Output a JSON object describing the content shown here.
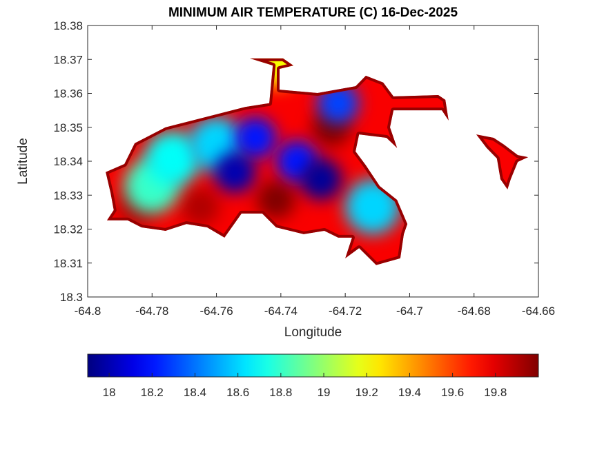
{
  "chart_data": {
    "type": "heatmap",
    "title": "MINIMUM AIR TEMPERATURE (C) 16-Dec-2025",
    "xlabel": "Longitude",
    "ylabel": "Latitude",
    "xlim": [
      -64.8,
      -64.66
    ],
    "ylim": [
      18.3,
      18.38
    ],
    "xticks": [
      "-64.8",
      "-64.78",
      "-64.76",
      "-64.74",
      "-64.72",
      "-64.7",
      "-64.68",
      "-64.66"
    ],
    "yticks": [
      "18.3",
      "18.31",
      "18.32",
      "18.33",
      "18.34",
      "18.35",
      "18.36",
      "18.37",
      "18.38"
    ],
    "grid": false,
    "colormap": "jet",
    "colorbar": {
      "location": "bottom",
      "range": [
        17.9,
        20.0
      ],
      "ticks": [
        "18",
        "18.2",
        "18.4",
        "18.6",
        "18.8",
        "19",
        "19.2",
        "19.4",
        "19.6",
        "19.8"
      ]
    },
    "background_value": 19.75,
    "coast_value": 19.95,
    "land_outlines": [
      [
        [
          -64.7944,
          18.3368
        ],
        [
          -64.7886,
          18.3392
        ],
        [
          -64.7854,
          18.3453
        ],
        [
          -64.7758,
          18.35
        ],
        [
          -64.7651,
          18.3526
        ],
        [
          -64.7511,
          18.356
        ],
        [
          -64.7436,
          18.3571
        ],
        [
          -64.7425,
          18.3682
        ],
        [
          -64.7496,
          18.3703
        ],
        [
          -64.7393,
          18.3703
        ],
        [
          -64.7361,
          18.3682
        ],
        [
          -64.7404,
          18.3672
        ],
        [
          -64.7404,
          18.3611
        ],
        [
          -64.7286,
          18.3601
        ],
        [
          -64.7168,
          18.3621
        ],
        [
          -64.7136,
          18.3652
        ],
        [
          -64.7082,
          18.3632
        ],
        [
          -64.705,
          18.3591
        ],
        [
          -64.6911,
          18.3595
        ],
        [
          -64.6889,
          18.3581
        ],
        [
          -64.6879,
          18.352
        ],
        [
          -64.69,
          18.355
        ],
        [
          -64.705,
          18.355
        ],
        [
          -64.7061,
          18.35
        ],
        [
          -64.7039,
          18.3439
        ],
        [
          -64.7072,
          18.3469
        ],
        [
          -64.7157,
          18.3479
        ],
        [
          -64.7168,
          18.3429
        ],
        [
          -64.7136,
          18.3388
        ],
        [
          -64.7093,
          18.3327
        ],
        [
          -64.7039,
          18.3286
        ],
        [
          -64.7007,
          18.3215
        ],
        [
          -64.7018,
          18.3185
        ],
        [
          -64.7029,
          18.3114
        ],
        [
          -64.7104,
          18.3094
        ],
        [
          -64.7157,
          18.3144
        ],
        [
          -64.72,
          18.3114
        ],
        [
          -64.7179,
          18.3175
        ],
        [
          -64.7222,
          18.3175
        ],
        [
          -64.7265,
          18.3195
        ],
        [
          -64.7329,
          18.3185
        ],
        [
          -64.7415,
          18.3205
        ],
        [
          -64.7458,
          18.3246
        ],
        [
          -64.7522,
          18.3246
        ],
        [
          -64.7575,
          18.3175
        ],
        [
          -64.7629,
          18.3205
        ],
        [
          -64.7693,
          18.3215
        ],
        [
          -64.7758,
          18.3195
        ],
        [
          -64.7833,
          18.3205
        ],
        [
          -64.7876,
          18.3226
        ],
        [
          -64.794,
          18.3226
        ],
        [
          -64.7919,
          18.3256
        ],
        [
          -64.7929,
          18.3307
        ]
      ],
      [
        [
          -64.6793,
          18.3479
        ],
        [
          -64.6739,
          18.3469
        ],
        [
          -64.6707,
          18.3449
        ],
        [
          -64.6664,
          18.3418
        ],
        [
          -64.6632,
          18.3412
        ],
        [
          -64.6664,
          18.3398
        ],
        [
          -64.6686,
          18.3347
        ],
        [
          -64.6696,
          18.3317
        ],
        [
          -64.6718,
          18.3347
        ],
        [
          -64.6729,
          18.3408
        ],
        [
          -64.6761,
          18.3439
        ]
      ]
    ],
    "points": [
      {
        "lon": -64.7243,
        "lat": 18.35,
        "value": 20.0
      },
      {
        "lon": -64.7415,
        "lat": 18.3287,
        "value": 20.0
      },
      {
        "lon": -64.765,
        "lat": 18.3266,
        "value": 19.9
      },
      {
        "lon": -64.7844,
        "lat": 18.3266,
        "value": 19.9
      },
      {
        "lon": -64.741,
        "lat": 18.369,
        "value": 19.2
      },
      {
        "lon": -64.7736,
        "lat": 18.3408,
        "value": 18.7
      },
      {
        "lon": -64.7801,
        "lat": 18.3327,
        "value": 18.8
      },
      {
        "lon": -64.7115,
        "lat": 18.3266,
        "value": 18.6
      },
      {
        "lon": -64.76,
        "lat": 18.345,
        "value": 18.6
      },
      {
        "lon": -64.7222,
        "lat": 18.3571,
        "value": 18.3
      },
      {
        "lon": -64.7479,
        "lat": 18.3469,
        "value": 18.2
      },
      {
        "lon": -64.735,
        "lat": 18.34,
        "value": 18.2
      },
      {
        "lon": -64.7543,
        "lat": 18.3368,
        "value": 18.0
      },
      {
        "lon": -64.7275,
        "lat": 18.3347,
        "value": 17.95
      }
    ]
  }
}
